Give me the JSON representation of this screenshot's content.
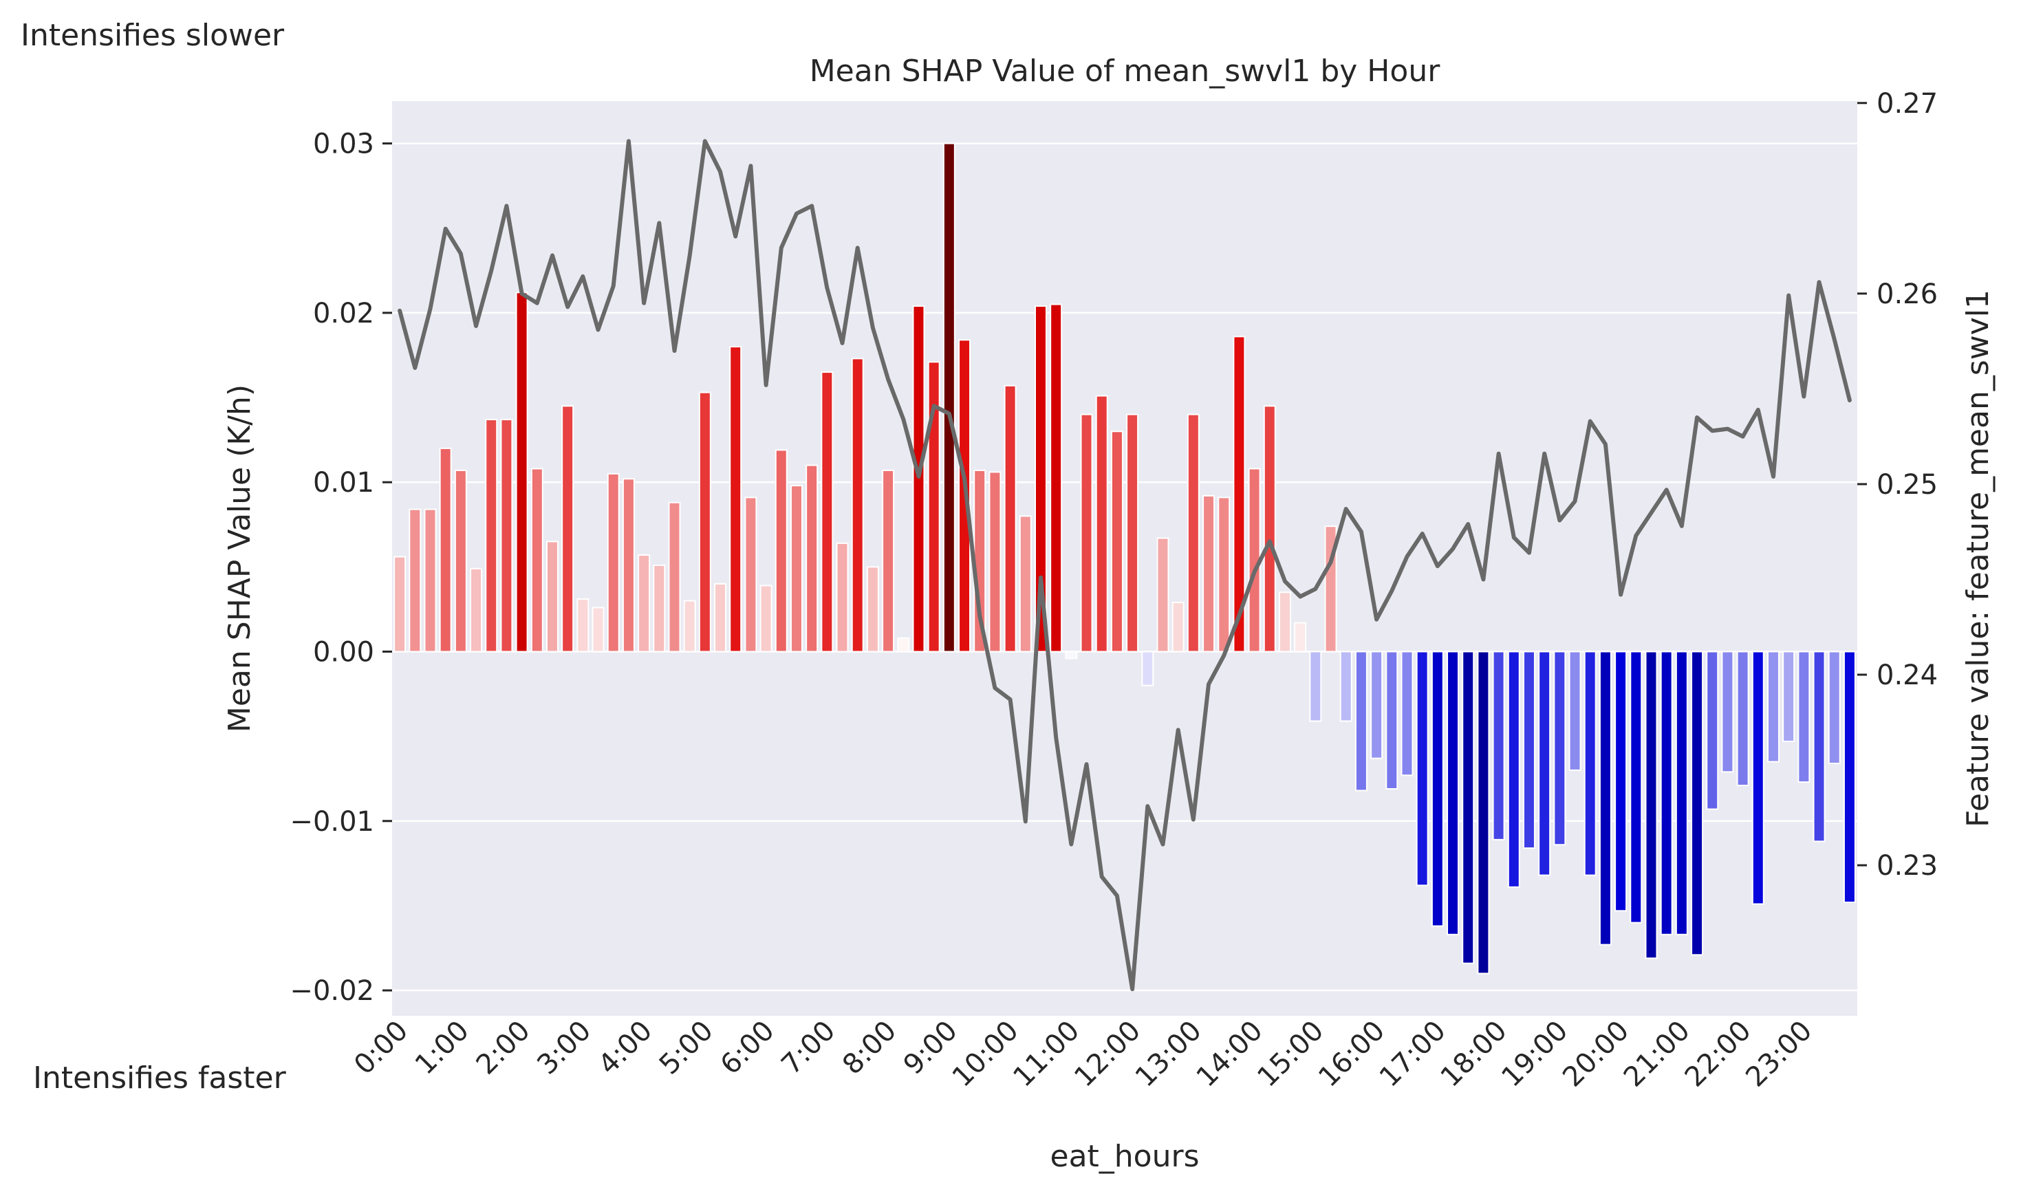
{
  "annotations": {
    "top": "Intensifies slower",
    "bottom": "Intensifies faster"
  },
  "chart_data": {
    "type": "bar",
    "title": "Mean SHAP Value of mean_swvl1 by Hour",
    "xlabel": "eat_hours",
    "ylabel": "Mean SHAP Value (K/h)",
    "y2label": "Feature value: feature_mean_swvl1",
    "ylim": [
      -0.0215,
      0.0325
    ],
    "y2lim": [
      0.2221,
      0.2701
    ],
    "yticks": [
      -0.02,
      -0.01,
      0.0,
      0.01,
      0.02,
      0.03
    ],
    "yticklabels": [
      "−0.02",
      "−0.01",
      "0.00",
      "0.01",
      "0.02",
      "0.03"
    ],
    "y2ticks": [
      0.23,
      0.24,
      0.25,
      0.26,
      0.27
    ],
    "y2ticklabels": [
      "0.23",
      "0.24",
      "0.25",
      "0.26",
      "0.27"
    ],
    "xticklabels": [
      "0:00",
      "1:00",
      "2:00",
      "3:00",
      "4:00",
      "5:00",
      "6:00",
      "7:00",
      "8:00",
      "9:00",
      "10:00",
      "11:00",
      "12:00",
      "13:00",
      "14:00",
      "15:00",
      "16:00",
      "17:00",
      "18:00",
      "19:00",
      "20:00",
      "21:00",
      "22:00",
      "23:00"
    ],
    "bins_per_hour": 4,
    "grid": true,
    "colors": {
      "background": "#eaeaf2",
      "grid": "#ffffff",
      "positive": "#e00000",
      "positive_dark": "#6a0000",
      "negative": "#0000dd",
      "negative_dark": "#00009a",
      "line": "#696969",
      "light": "#ffffff"
    },
    "series": [
      {
        "kind": "bar",
        "values": [
          0.0056,
          0.0084,
          0.0084,
          0.012,
          0.0107,
          0.0049,
          0.0137,
          0.0137,
          0.0212,
          0.0108,
          0.0065,
          0.0145,
          0.0031,
          0.0026,
          0.0105,
          0.0102,
          0.0057,
          0.0051,
          0.0088,
          0.003,
          0.0153,
          0.004,
          0.018,
          0.0091,
          0.0039,
          0.0119,
          0.0098,
          0.011,
          0.0165,
          0.0064,
          0.0173,
          0.005,
          0.0107,
          0.0008,
          0.0204,
          0.0171,
          0.03,
          0.0184,
          0.0107,
          0.0106,
          0.0157,
          0.008,
          0.0204,
          0.0205,
          -0.0004,
          0.014,
          0.0151,
          0.013,
          0.014,
          -0.002,
          0.0067,
          0.0029,
          0.014,
          0.0092,
          0.0091,
          0.0186,
          0.0108,
          0.0145,
          0.0035,
          0.0017,
          -0.0041,
          0.0074,
          -0.0041,
          -0.0082,
          -0.0063,
          -0.0081,
          -0.0073,
          -0.0138,
          -0.0162,
          -0.0167,
          -0.0184,
          -0.019,
          -0.0111,
          -0.0139,
          -0.0116,
          -0.0132,
          -0.0114,
          -0.007,
          -0.0132,
          -0.0173,
          -0.0153,
          -0.016,
          -0.0181,
          -0.0167,
          -0.0167,
          -0.0179,
          -0.0093,
          -0.0071,
          -0.0079,
          -0.0149,
          -0.0065,
          -0.0053,
          -0.0077,
          -0.0112,
          -0.0066,
          -0.0148
        ]
      },
      {
        "kind": "line",
        "axis": "right",
        "values": [
          0.2591,
          0.2561,
          0.2592,
          0.2634,
          0.2621,
          0.2583,
          0.2612,
          0.2646,
          0.26,
          0.2595,
          0.262,
          0.2593,
          0.2609,
          0.2581,
          0.2604,
          0.268,
          0.2595,
          0.2637,
          0.257,
          0.262,
          0.268,
          0.2664,
          0.263,
          0.2667,
          0.2552,
          0.2624,
          0.2642,
          0.2646,
          0.2603,
          0.2574,
          0.2624,
          0.2582,
          0.2555,
          0.2534,
          0.2504,
          0.2541,
          0.2537,
          0.2503,
          0.2431,
          0.2393,
          0.2387,
          0.2323,
          0.2451,
          0.2367,
          0.2311,
          0.2353,
          0.2294,
          0.2284,
          0.2235,
          0.2331,
          0.2311,
          0.2371,
          0.2324,
          0.2395,
          0.241,
          0.2431,
          0.2454,
          0.247,
          0.2449,
          0.2441,
          0.2445,
          0.2459,
          0.2487,
          0.2475,
          0.2429,
          0.2444,
          0.2462,
          0.2474,
          0.2457,
          0.2466,
          0.2479,
          0.245,
          0.2516,
          0.2472,
          0.2464,
          0.2516,
          0.2481,
          0.2491,
          0.2533,
          0.2521,
          0.2442,
          0.2473,
          0.2485,
          0.2497,
          0.2478,
          0.2535,
          0.2528,
          0.2529,
          0.2525,
          0.2539,
          0.2504,
          0.2599,
          0.2546,
          0.2606,
          0.2576,
          0.2544
        ]
      }
    ]
  }
}
